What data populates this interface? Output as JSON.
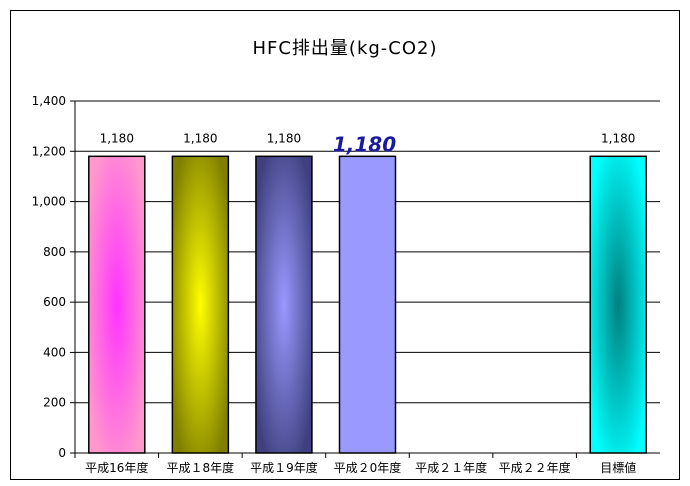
{
  "chart_data": {
    "type": "bar",
    "title": "HFC排出量(kg-CO2)",
    "categories": [
      "平成16年度",
      "平成１8年度",
      "平成１9年度",
      "平成２0年度",
      "平成２１年度",
      "平成２２年度",
      "目標値"
    ],
    "values": [
      1180,
      1180,
      1180,
      1180,
      null,
      null,
      1180
    ],
    "data_labels": [
      "1,180",
      "1,180",
      "1,180",
      "1,180",
      "",
      "",
      "1,180"
    ],
    "ylim": [
      0,
      1400
    ],
    "yticks": [
      "0",
      "200",
      "400",
      "600",
      "800",
      "1,000",
      "1,200",
      "1,400"
    ],
    "grid": true,
    "legend": "none",
    "colors": {
      "bar_center": [
        "#ff33ff",
        "#ffff00",
        "#9999ff",
        "#9999ff",
        "",
        "",
        "#008080"
      ],
      "bar_edge": [
        "#ff99cc",
        "#808000",
        "#404080",
        "#9999ff",
        "",
        "",
        "#00ffff"
      ]
    }
  }
}
